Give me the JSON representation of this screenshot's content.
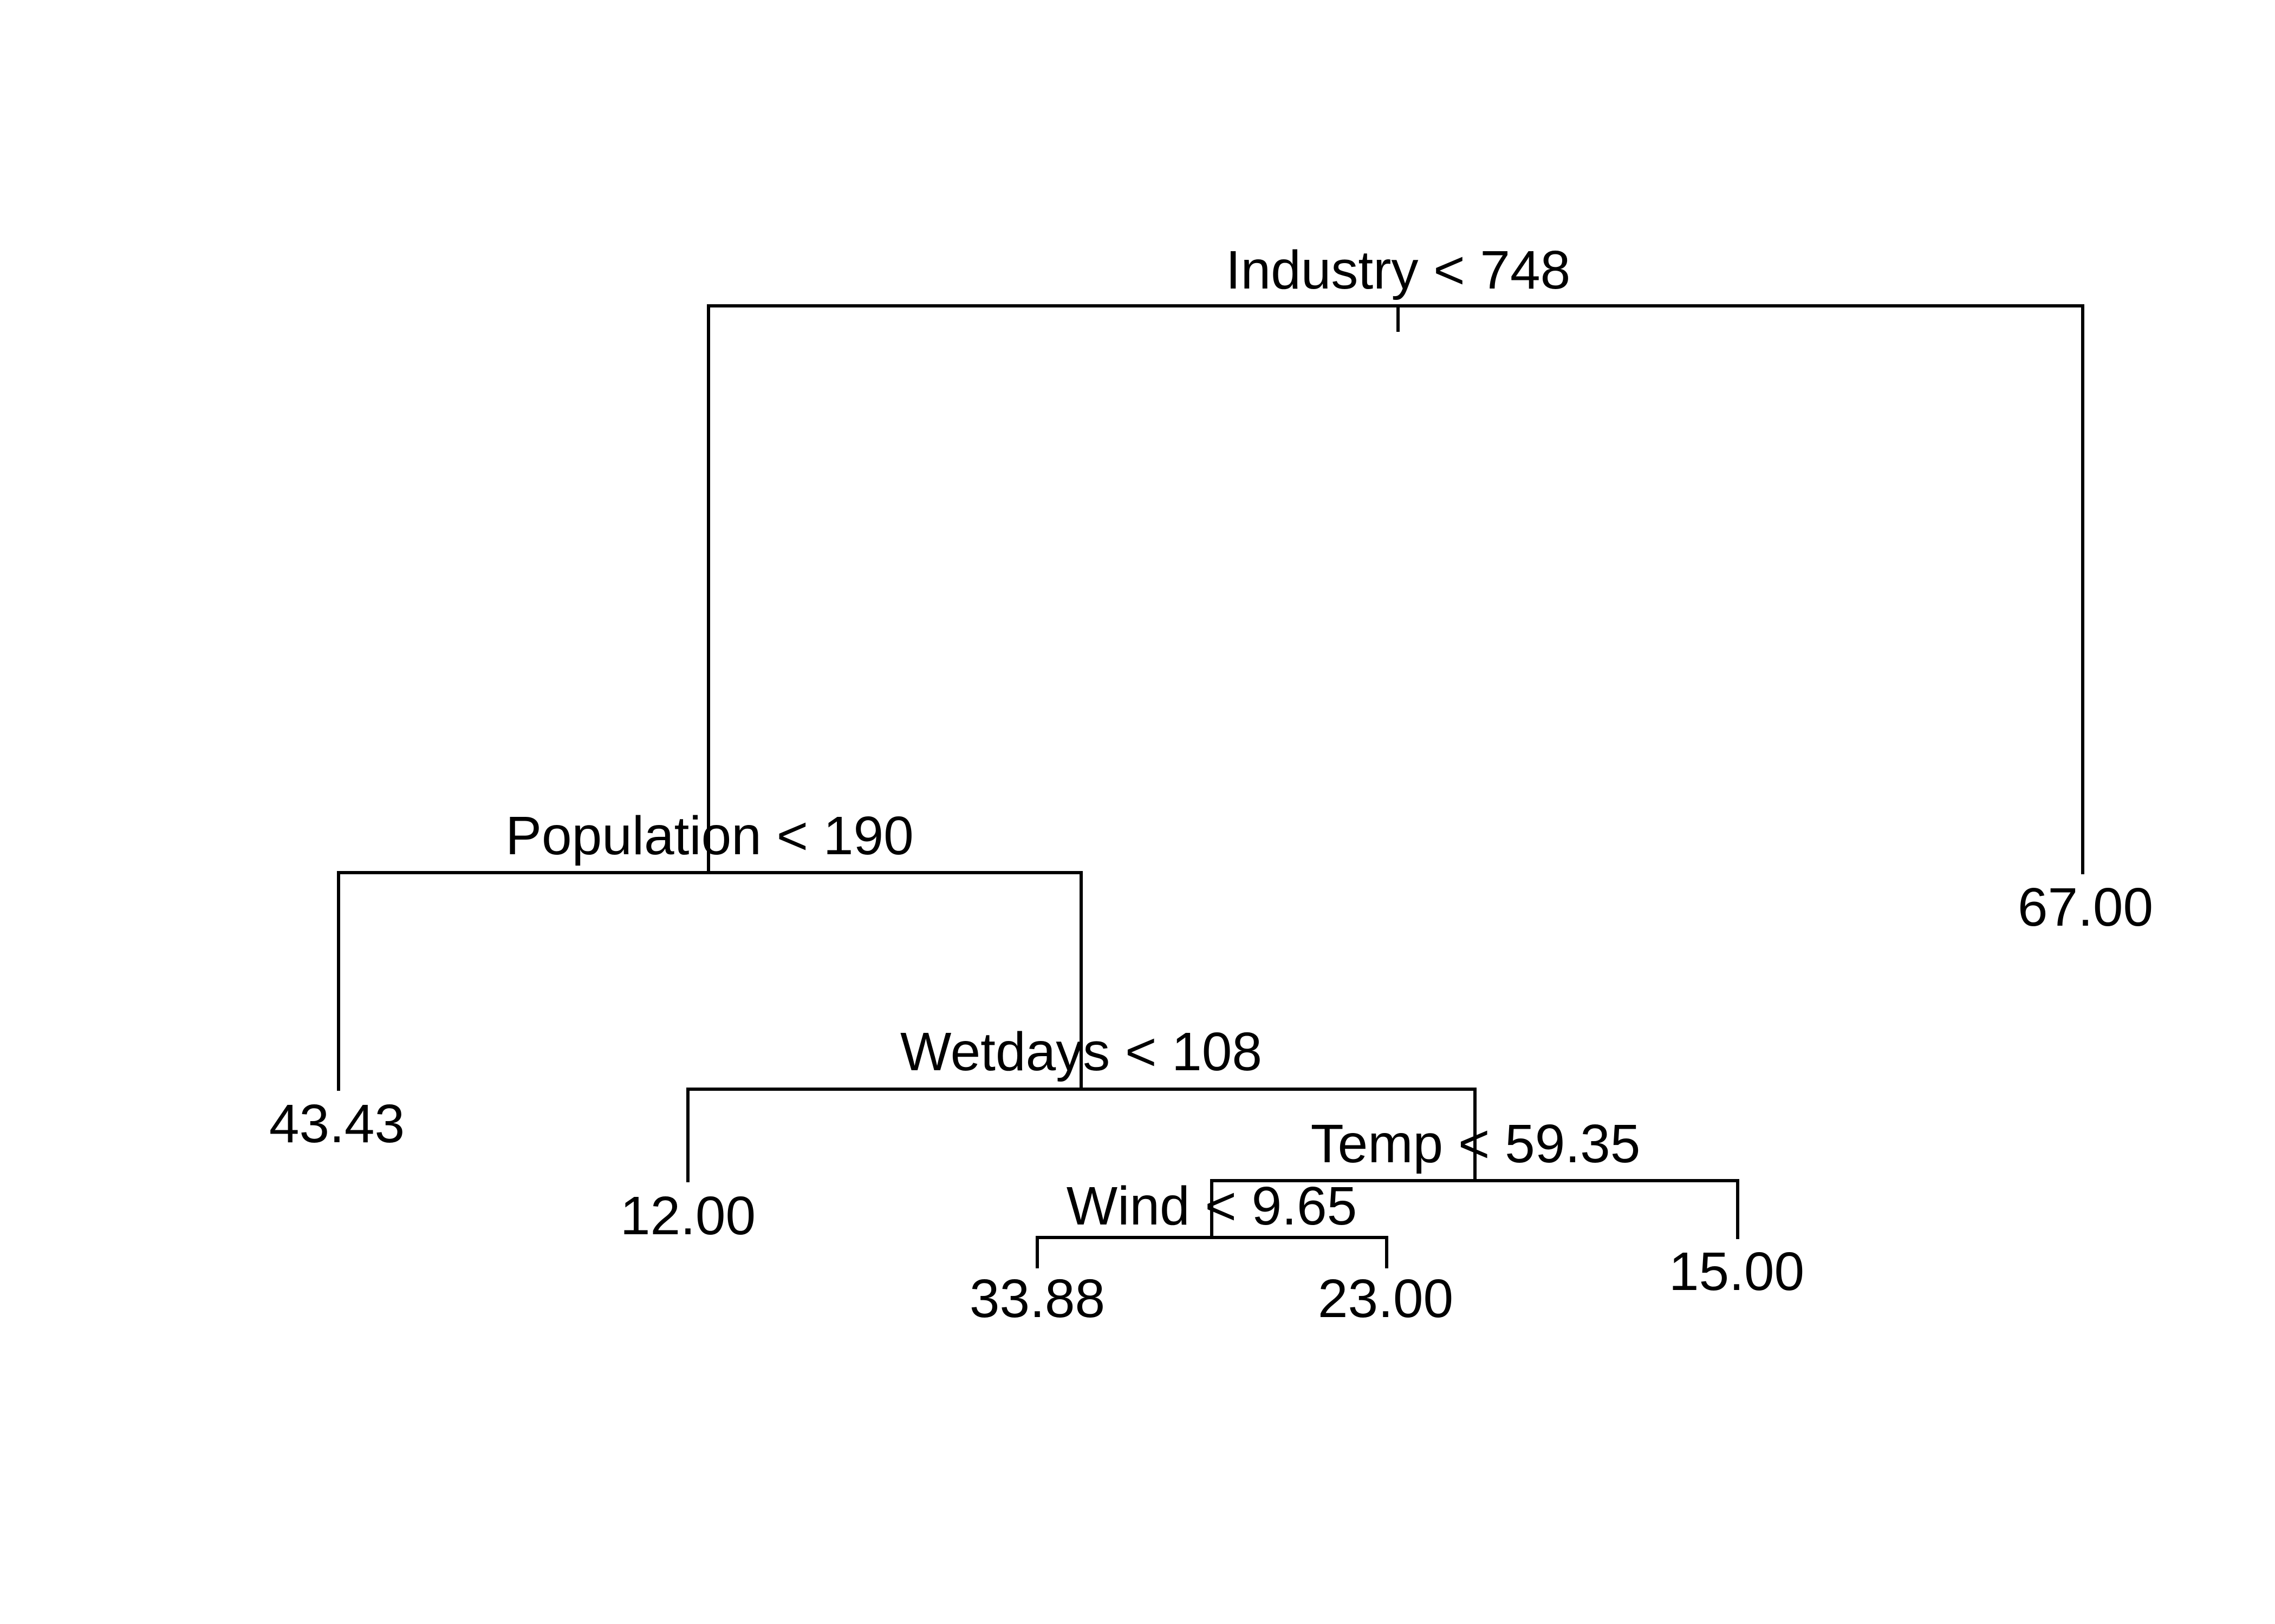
{
  "tree": {
    "root": {
      "split_label": "Industry < 748",
      "left": {
        "split_label": "Population < 190",
        "left": {
          "leaf_value": "43.43"
        },
        "right": {
          "split_label": "Wetdays < 108",
          "left": {
            "leaf_value": "12.00"
          },
          "right": {
            "split_label": "Temp < 59.35",
            "left": {
              "split_label": "Wind < 9.65",
              "left": {
                "leaf_value": "33.88"
              },
              "right": {
                "leaf_value": "23.00"
              }
            },
            "right": {
              "leaf_value": "15.00"
            }
          }
        }
      },
      "right": {
        "leaf_value": "67.00"
      }
    },
    "colors": {
      "line": "#000000",
      "text": "#000000",
      "background": "#ffffff"
    }
  }
}
